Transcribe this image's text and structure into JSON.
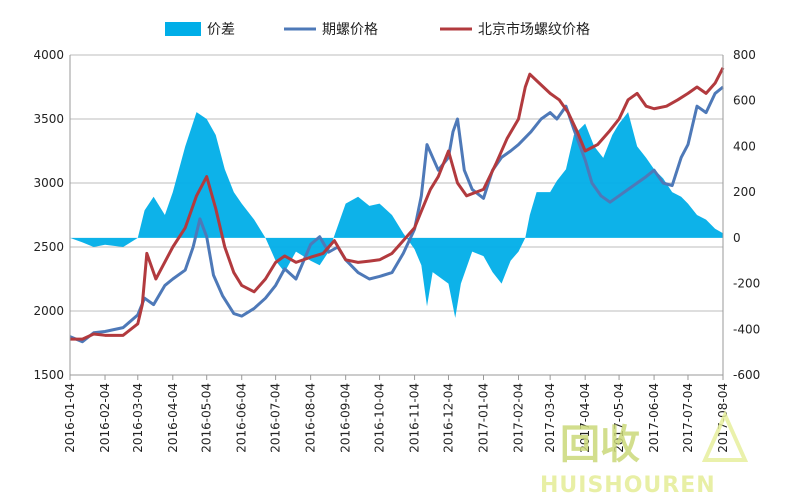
{
  "chart_data": {
    "type": "line",
    "legend": [
      {
        "label": "价差",
        "series": "diff",
        "swatch": "area",
        "color": "#00aee8"
      },
      {
        "label": "期螺价格",
        "series": "futures",
        "swatch": "line",
        "color": "#4e79b8"
      },
      {
        "label": "北京市场螺纹价格",
        "series": "spot",
        "swatch": "line",
        "color": "#b23a3e"
      }
    ],
    "legend_placement": "top-center",
    "x_tick_labels": [
      "2016-01-04",
      "2016-02-04",
      "2016-03-04",
      "2016-04-04",
      "2016-05-04",
      "2016-06-04",
      "2016-07-04",
      "2016-08-04",
      "2016-09-04",
      "2016-10-04",
      "2016-11-04",
      "2016-12-04",
      "2017-01-04",
      "2017-02-04",
      "2017-03-04",
      "2017-04-04",
      "2017-05-04",
      "2017-06-04",
      "2017-07-04",
      "2017-08-04"
    ],
    "y_left_ticks": [
      "4000",
      "3500",
      "3000",
      "2500",
      "2000",
      "1500"
    ],
    "y_right_ticks": [
      "800",
      "600",
      "400",
      "200",
      "0",
      "-200",
      "-400",
      "-600"
    ],
    "y_left_range": [
      1500,
      4000
    ],
    "y_right_range": [
      -600,
      800
    ],
    "grid": "horizontal",
    "x_range": [
      "2016-01-04",
      "2017-08-04"
    ],
    "series": [
      {
        "key": "futures",
        "name": "期螺价格",
        "axis": "left",
        "color": "#4e79b8",
        "points": [
          [
            "2016-01-04",
            1800
          ],
          [
            "2016-01-15",
            1760
          ],
          [
            "2016-01-25",
            1830
          ],
          [
            "2016-02-04",
            1840
          ],
          [
            "2016-02-20",
            1870
          ],
          [
            "2016-03-04",
            1970
          ],
          [
            "2016-03-10",
            2100
          ],
          [
            "2016-03-18",
            2050
          ],
          [
            "2016-03-28",
            2200
          ],
          [
            "2016-04-04",
            2250
          ],
          [
            "2016-04-15",
            2320
          ],
          [
            "2016-04-22",
            2500
          ],
          [
            "2016-04-28",
            2720
          ],
          [
            "2016-05-04",
            2580
          ],
          [
            "2016-05-10",
            2280
          ],
          [
            "2016-05-18",
            2120
          ],
          [
            "2016-05-28",
            1980
          ],
          [
            "2016-06-04",
            1960
          ],
          [
            "2016-06-15",
            2020
          ],
          [
            "2016-06-25",
            2100
          ],
          [
            "2016-07-04",
            2200
          ],
          [
            "2016-07-12",
            2330
          ],
          [
            "2016-07-22",
            2250
          ],
          [
            "2016-08-04",
            2520
          ],
          [
            "2016-08-12",
            2580
          ],
          [
            "2016-08-20",
            2460
          ],
          [
            "2016-08-28",
            2500
          ],
          [
            "2016-09-04",
            2400
          ],
          [
            "2016-09-15",
            2300
          ],
          [
            "2016-09-25",
            2250
          ],
          [
            "2016-10-04",
            2270
          ],
          [
            "2016-10-15",
            2300
          ],
          [
            "2016-10-25",
            2450
          ],
          [
            "2016-11-04",
            2640
          ],
          [
            "2016-11-10",
            2900
          ],
          [
            "2016-11-15",
            3300
          ],
          [
            "2016-11-25",
            3100
          ],
          [
            "2016-12-04",
            3200
          ],
          [
            "2016-12-08",
            3400
          ],
          [
            "2016-12-12",
            3500
          ],
          [
            "2016-12-18",
            3100
          ],
          [
            "2016-12-25",
            2950
          ],
          [
            "2017-01-04",
            2880
          ],
          [
            "2017-01-12",
            3100
          ],
          [
            "2017-01-20",
            3200
          ],
          [
            "2017-01-28",
            3250
          ],
          [
            "2017-02-04",
            3300
          ],
          [
            "2017-02-15",
            3400
          ],
          [
            "2017-02-24",
            3500
          ],
          [
            "2017-03-04",
            3550
          ],
          [
            "2017-03-10",
            3500
          ],
          [
            "2017-03-18",
            3600
          ],
          [
            "2017-03-25",
            3420
          ],
          [
            "2017-04-04",
            3180
          ],
          [
            "2017-04-10",
            3000
          ],
          [
            "2017-04-18",
            2900
          ],
          [
            "2017-04-26",
            2850
          ],
          [
            "2017-05-04",
            2900
          ],
          [
            "2017-05-12",
            2950
          ],
          [
            "2017-05-20",
            3000
          ],
          [
            "2017-05-28",
            3050
          ],
          [
            "2017-06-04",
            3100
          ],
          [
            "2017-06-12",
            3000
          ],
          [
            "2017-06-20",
            2980
          ],
          [
            "2017-06-28",
            3200
          ],
          [
            "2017-07-04",
            3300
          ],
          [
            "2017-07-12",
            3600
          ],
          [
            "2017-07-20",
            3550
          ],
          [
            "2017-07-28",
            3700
          ],
          [
            "2017-08-04",
            3750
          ]
        ]
      },
      {
        "key": "spot",
        "name": "北京市场螺纹价格",
        "axis": "left",
        "color": "#b23a3e",
        "points": [
          [
            "2016-01-04",
            1780
          ],
          [
            "2016-01-15",
            1780
          ],
          [
            "2016-01-25",
            1820
          ],
          [
            "2016-02-04",
            1810
          ],
          [
            "2016-02-20",
            1810
          ],
          [
            "2016-03-04",
            1900
          ],
          [
            "2016-03-08",
            2050
          ],
          [
            "2016-03-12",
            2450
          ],
          [
            "2016-03-20",
            2250
          ],
          [
            "2016-04-04",
            2500
          ],
          [
            "2016-04-15",
            2650
          ],
          [
            "2016-04-25",
            2900
          ],
          [
            "2016-05-04",
            3050
          ],
          [
            "2016-05-12",
            2800
          ],
          [
            "2016-05-20",
            2500
          ],
          [
            "2016-05-28",
            2300
          ],
          [
            "2016-06-04",
            2200
          ],
          [
            "2016-06-15",
            2150
          ],
          [
            "2016-06-25",
            2250
          ],
          [
            "2016-07-04",
            2380
          ],
          [
            "2016-07-12",
            2430
          ],
          [
            "2016-07-22",
            2380
          ],
          [
            "2016-08-04",
            2420
          ],
          [
            "2016-08-15",
            2450
          ],
          [
            "2016-08-25",
            2550
          ],
          [
            "2016-09-04",
            2400
          ],
          [
            "2016-09-15",
            2380
          ],
          [
            "2016-09-25",
            2390
          ],
          [
            "2016-10-04",
            2400
          ],
          [
            "2016-10-15",
            2450
          ],
          [
            "2016-10-25",
            2550
          ],
          [
            "2016-11-04",
            2650
          ],
          [
            "2016-11-10",
            2780
          ],
          [
            "2016-11-18",
            2950
          ],
          [
            "2016-11-25",
            3050
          ],
          [
            "2016-12-04",
            3250
          ],
          [
            "2016-12-12",
            3000
          ],
          [
            "2016-12-20",
            2900
          ],
          [
            "2017-01-04",
            2950
          ],
          [
            "2017-01-15",
            3150
          ],
          [
            "2017-01-25",
            3350
          ],
          [
            "2017-02-04",
            3500
          ],
          [
            "2017-02-10",
            3750
          ],
          [
            "2017-02-14",
            3850
          ],
          [
            "2017-02-20",
            3800
          ],
          [
            "2017-03-04",
            3700
          ],
          [
            "2017-03-12",
            3650
          ],
          [
            "2017-03-20",
            3550
          ],
          [
            "2017-03-28",
            3400
          ],
          [
            "2017-04-04",
            3250
          ],
          [
            "2017-04-15",
            3300
          ],
          [
            "2017-04-25",
            3400
          ],
          [
            "2017-05-04",
            3500
          ],
          [
            "2017-05-12",
            3650
          ],
          [
            "2017-05-20",
            3700
          ],
          [
            "2017-05-28",
            3600
          ],
          [
            "2017-06-04",
            3580
          ],
          [
            "2017-06-15",
            3600
          ],
          [
            "2017-06-25",
            3650
          ],
          [
            "2017-07-04",
            3700
          ],
          [
            "2017-07-12",
            3750
          ],
          [
            "2017-07-20",
            3700
          ],
          [
            "2017-07-28",
            3780
          ],
          [
            "2017-08-04",
            3900
          ]
        ]
      },
      {
        "key": "diff",
        "name": "价差",
        "axis": "right",
        "color": "#00aee8",
        "points": [
          [
            "2016-01-04",
            0
          ],
          [
            "2016-01-15",
            -20
          ],
          [
            "2016-01-25",
            -40
          ],
          [
            "2016-02-04",
            -30
          ],
          [
            "2016-02-20",
            -40
          ],
          [
            "2016-03-04",
            0
          ],
          [
            "2016-03-10",
            120
          ],
          [
            "2016-03-18",
            180
          ],
          [
            "2016-03-28",
            100
          ],
          [
            "2016-04-04",
            200
          ],
          [
            "2016-04-15",
            400
          ],
          [
            "2016-04-25",
            550
          ],
          [
            "2016-05-04",
            520
          ],
          [
            "2016-05-12",
            450
          ],
          [
            "2016-05-20",
            300
          ],
          [
            "2016-05-28",
            200
          ],
          [
            "2016-06-04",
            150
          ],
          [
            "2016-06-15",
            80
          ],
          [
            "2016-06-25",
            0
          ],
          [
            "2016-07-04",
            -100
          ],
          [
            "2016-07-12",
            -150
          ],
          [
            "2016-07-22",
            -60
          ],
          [
            "2016-08-04",
            -100
          ],
          [
            "2016-08-12",
            -120
          ],
          [
            "2016-08-20",
            -60
          ],
          [
            "2016-09-04",
            150
          ],
          [
            "2016-09-15",
            180
          ],
          [
            "2016-09-25",
            140
          ],
          [
            "2016-10-04",
            150
          ],
          [
            "2016-10-15",
            100
          ],
          [
            "2016-10-25",
            20
          ],
          [
            "2016-11-04",
            -50
          ],
          [
            "2016-11-10",
            -120
          ],
          [
            "2016-11-15",
            -300
          ],
          [
            "2016-11-20",
            -150
          ],
          [
            "2016-12-04",
            -200
          ],
          [
            "2016-12-10",
            -350
          ],
          [
            "2016-12-15",
            -200
          ],
          [
            "2016-12-25",
            -60
          ],
          [
            "2017-01-04",
            -80
          ],
          [
            "2017-01-12",
            -150
          ],
          [
            "2017-01-20",
            -200
          ],
          [
            "2017-01-28",
            -100
          ],
          [
            "2017-02-04",
            -60
          ],
          [
            "2017-02-10",
            0
          ],
          [
            "2017-02-14",
            100
          ],
          [
            "2017-02-20",
            200
          ],
          [
            "2017-03-04",
            200
          ],
          [
            "2017-03-10",
            250
          ],
          [
            "2017-03-18",
            300
          ],
          [
            "2017-03-25",
            450
          ],
          [
            "2017-04-04",
            500
          ],
          [
            "2017-04-12",
            400
          ],
          [
            "2017-04-20",
            350
          ],
          [
            "2017-04-28",
            450
          ],
          [
            "2017-05-04",
            500
          ],
          [
            "2017-05-12",
            550
          ],
          [
            "2017-05-20",
            400
          ],
          [
            "2017-05-28",
            350
          ],
          [
            "2017-06-04",
            300
          ],
          [
            "2017-06-12",
            260
          ],
          [
            "2017-06-20",
            200
          ],
          [
            "2017-06-28",
            180
          ],
          [
            "2017-07-04",
            150
          ],
          [
            "2017-07-12",
            100
          ],
          [
            "2017-07-20",
            80
          ],
          [
            "2017-07-28",
            40
          ],
          [
            "2017-08-04",
            20
          ]
        ]
      }
    ]
  },
  "watermark": {
    "mark": "回收",
    "word": "HUISHOUREN"
  }
}
